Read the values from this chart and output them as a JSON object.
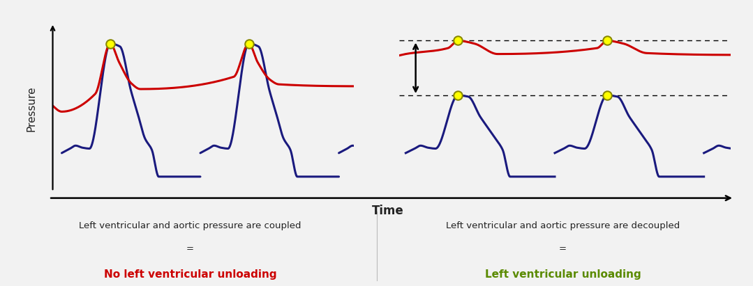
{
  "bg_color": "#f2f2f2",
  "plot_bg": "#ffffff",
  "border_color": "#cc3333",
  "blue_color": "#1a1a7e",
  "red_color": "#cc0000",
  "green_color": "#5a8a00",
  "dot_face": "#ffff00",
  "dot_edge": "#888800",
  "text_color": "#222222",
  "ylabel": "Pressure",
  "xlabel": "Time",
  "caption_left_line1": "Left ventricular and aortic pressure are coupled",
  "caption_left_line2": "=",
  "caption_left_line3": "No left ventricular unloading",
  "caption_right_line1": "Left ventricular and aortic pressure are decoupled",
  "caption_right_line2": "=",
  "caption_right_line3": "Left ventricular unloading"
}
